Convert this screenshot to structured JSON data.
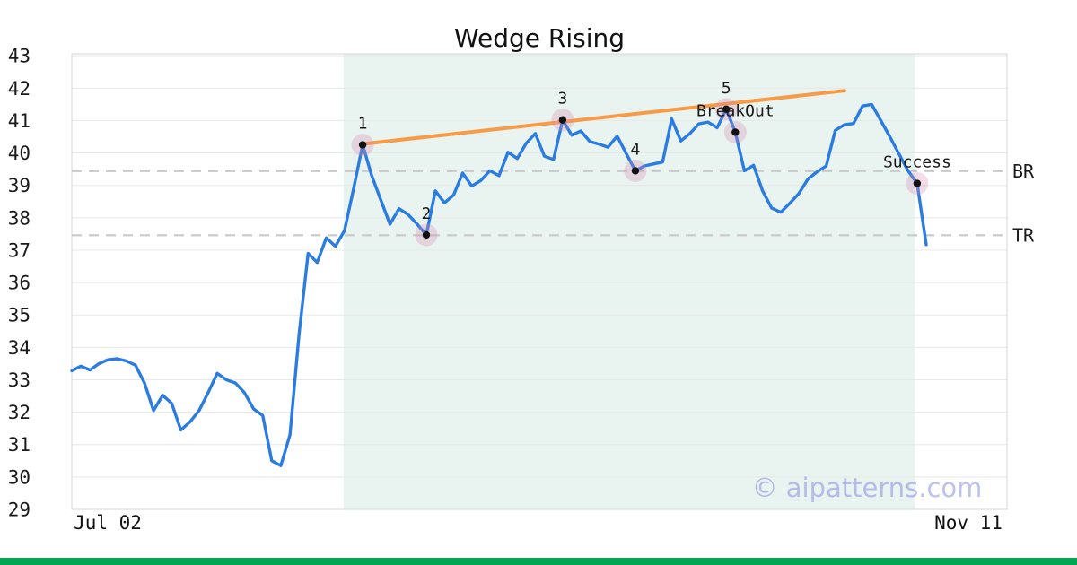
{
  "chart_data": {
    "type": "line",
    "title": "Wedge Rising",
    "x_tick_labels": [
      "Jul 02",
      "Nov 11"
    ],
    "y_ticks": [
      29,
      30,
      31,
      32,
      33,
      34,
      35,
      36,
      37,
      38,
      39,
      40,
      41,
      42,
      43
    ],
    "ylim": [
      29,
      43.06
    ],
    "grid": "horizontal",
    "series": [
      {
        "name": "price",
        "color": "#2b7ce0",
        "values": [
          33.28,
          33.42,
          33.3,
          33.5,
          33.62,
          33.65,
          33.58,
          33.45,
          32.9,
          32.05,
          32.52,
          32.27,
          31.45,
          31.7,
          32.05,
          32.6,
          33.2,
          33.0,
          32.9,
          32.6,
          32.1,
          31.9,
          30.5,
          30.35,
          31.3,
          34.4,
          36.9,
          36.62,
          37.38,
          37.12,
          37.6,
          38.9,
          40.25,
          39.3,
          38.55,
          37.8,
          38.28,
          38.1,
          37.8,
          37.47,
          38.83,
          38.46,
          38.7,
          39.38,
          38.98,
          39.15,
          39.45,
          39.3,
          40.02,
          39.83,
          40.3,
          40.6,
          39.9,
          39.8,
          41.02,
          40.55,
          40.68,
          40.35,
          40.27,
          40.18,
          40.52,
          39.98,
          39.45,
          39.6,
          39.66,
          39.72,
          41.05,
          40.37,
          40.6,
          40.9,
          40.95,
          40.78,
          41.35,
          40.64,
          39.45,
          39.62,
          38.83,
          38.3,
          38.17,
          38.45,
          38.75,
          39.2,
          39.42,
          39.6,
          40.7,
          40.87,
          40.91,
          41.45,
          41.5,
          41.0,
          40.5,
          39.97,
          39.45,
          39.06,
          37.17
        ]
      }
    ],
    "trendline": {
      "color": "#f89b46",
      "from_i": 32.4,
      "from_v": 40.29,
      "to_i": 85.0,
      "to_v": 41.92
    },
    "hlines": [
      {
        "label": "BR",
        "value": 39.44
      },
      {
        "label": "TR",
        "value": 37.46
      }
    ],
    "shade_region": {
      "from_i": 29.9,
      "to_i": 92.75,
      "color": "#e9f3ef"
    },
    "annotations": [
      {
        "label": "1",
        "i": 32,
        "value": 40.25
      },
      {
        "label": "2",
        "i": 39,
        "value": 37.47
      },
      {
        "label": "3",
        "i": 54,
        "value": 41.02
      },
      {
        "label": "4",
        "i": 62,
        "value": 39.45
      },
      {
        "label": "5",
        "i": 72,
        "value": 41.35
      },
      {
        "label": "BreakOut",
        "i": 73,
        "value": 40.64
      },
      {
        "label": "Success",
        "i": 93,
        "value": 39.06
      }
    ]
  },
  "style": {
    "grid_color": "#e8e8e8",
    "border_color": "#d6d6d6",
    "dashed_color": "#c9c9c9",
    "dot_color": "#111111",
    "halo_color": "rgba(216,140,180,0.3)",
    "text_color": "#1a1a1a"
  },
  "watermark": {
    "text": "© aipatterns.com"
  },
  "status_bar": {
    "status": "success",
    "color": "#00a651"
  }
}
